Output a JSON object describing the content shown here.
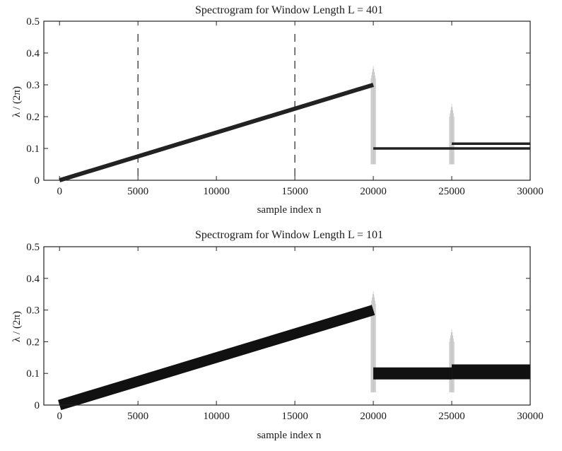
{
  "chart_data": [
    {
      "type": "line",
      "title": "Spectrogram for Window Length L = 401",
      "xlabel": "sample index n",
      "ylabel": "λ / (2π)",
      "xlim": [
        -1000,
        30000
      ],
      "ylim": [
        0,
        0.5
      ],
      "xticks": [
        0,
        5000,
        10000,
        15000,
        20000,
        25000,
        30000
      ],
      "yticks": [
        0,
        0.1,
        0.2,
        0.3,
        0.4,
        0.5
      ],
      "xtick_labels": [
        "0",
        "5000",
        "10000",
        "15000",
        "20000",
        "25000",
        "30000"
      ],
      "ytick_labels": [
        "0",
        "0.1",
        "0.2",
        "0.3",
        "0.4",
        "0.5"
      ],
      "grid": false,
      "line_color": "#222222",
      "series": [
        {
          "x": [
            0,
            20000
          ],
          "y": [
            0,
            0.3
          ]
        },
        {
          "x": [
            20000,
            30000
          ],
          "y": [
            0.1,
            0.1
          ]
        },
        {
          "x": [
            25000,
            30000
          ],
          "y": [
            0.115,
            0.115
          ]
        }
      ],
      "vertical_dashed_lines": [
        5000,
        15000
      ]
    },
    {
      "type": "line",
      "title": "Spectrogram for Window Length L = 101",
      "xlabel": "sample index n",
      "ylabel": "λ / (2π)",
      "xlim": [
        -1000,
        30000
      ],
      "ylim": [
        0,
        0.5
      ],
      "xticks": [
        0,
        5000,
        10000,
        15000,
        20000,
        25000,
        30000
      ],
      "yticks": [
        0,
        0.1,
        0.2,
        0.3,
        0.4,
        0.5
      ],
      "xtick_labels": [
        "0",
        "5000",
        "10000",
        "15000",
        "20000",
        "25000",
        "30000"
      ],
      "ytick_labels": [
        "0",
        "0.1",
        "0.2",
        "0.3",
        "0.4",
        "0.5"
      ],
      "grid": false,
      "line_color": "#111111",
      "series": [
        {
          "x": [
            0,
            20000
          ],
          "y": [
            0,
            0.3
          ]
        },
        {
          "x": [
            20000,
            25000
          ],
          "y": [
            0.1,
            0.1
          ]
        },
        {
          "x": [
            25000,
            30000
          ],
          "y": [
            0.105,
            0.105
          ]
        }
      ],
      "vertical_dashed_lines": []
    }
  ]
}
